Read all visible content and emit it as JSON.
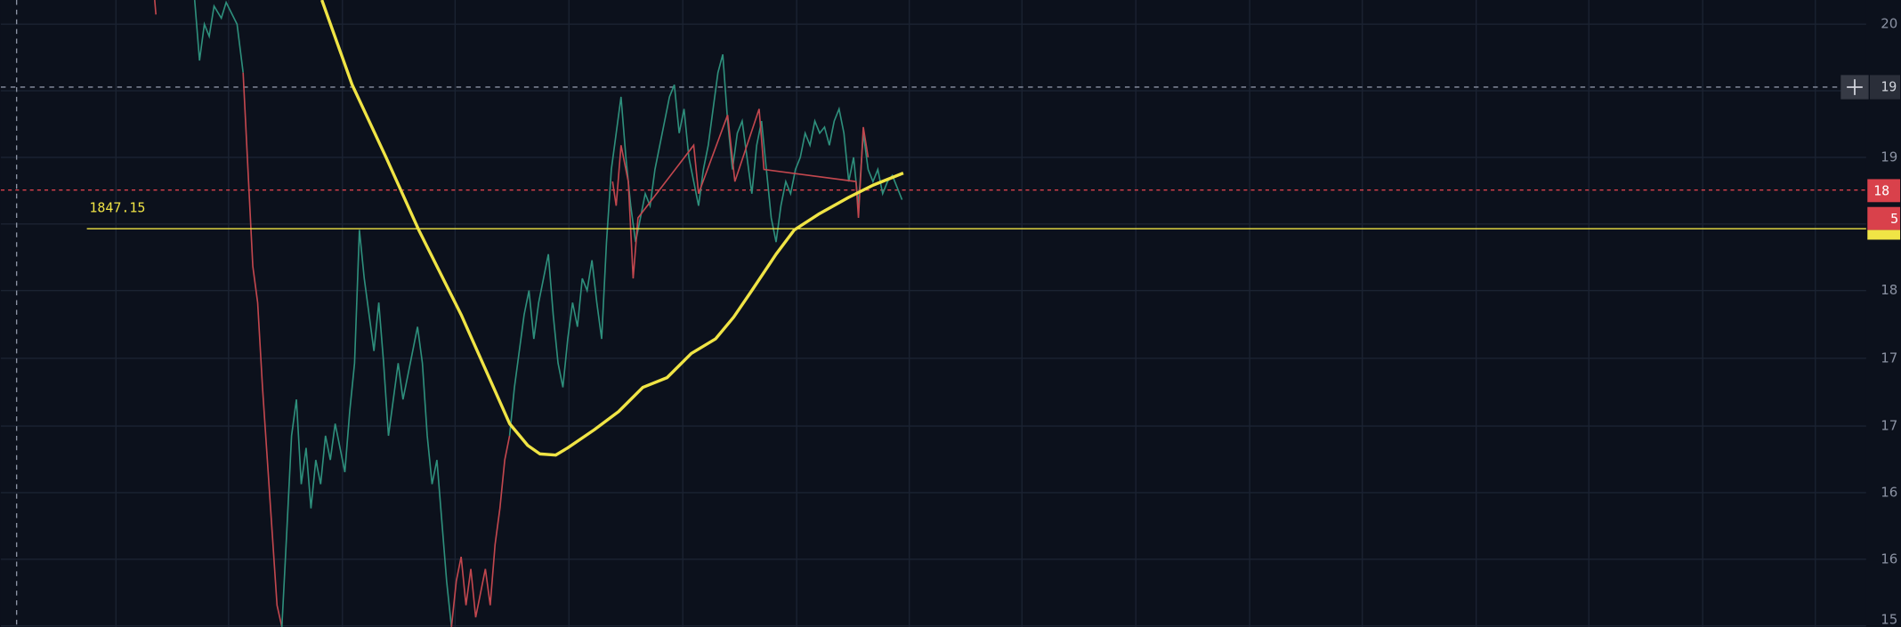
{
  "price_line": {
    "label": "1847.15"
  },
  "price_axis": {
    "labels": [
      "20",
      "19",
      "18",
      "17",
      "17",
      "16",
      "16",
      "15"
    ]
  },
  "markers": {
    "crosshair": "19",
    "last_price": "18",
    "countdown": "5"
  }
}
